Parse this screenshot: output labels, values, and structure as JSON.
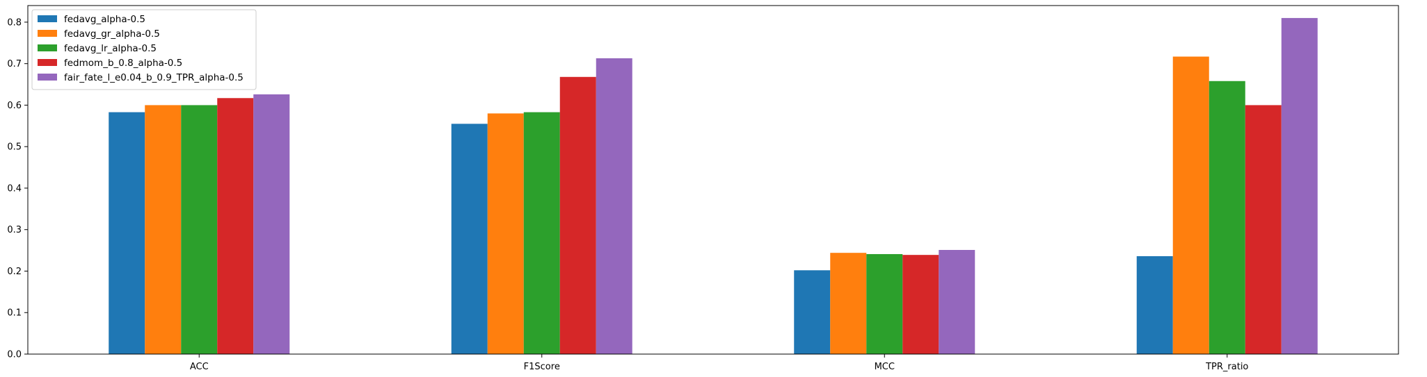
{
  "chart_data": {
    "type": "bar",
    "categories": [
      "ACC",
      "F1Score",
      "MCC",
      "TPR_ratio"
    ],
    "series": [
      {
        "name": "fedavg_alpha-0.5",
        "color": "#1f77b4",
        "values": [
          0.583,
          0.555,
          0.202,
          0.236
        ]
      },
      {
        "name": "fedavg_gr_alpha-0.5",
        "color": "#ff7f0e",
        "values": [
          0.6,
          0.58,
          0.244,
          0.717
        ]
      },
      {
        "name": "fedavg_lr_alpha-0.5",
        "color": "#2ca02c",
        "values": [
          0.6,
          0.583,
          0.241,
          0.658
        ]
      },
      {
        "name": "fedmom_b_0.8_alpha-0.5",
        "color": "#d62728",
        "values": [
          0.617,
          0.668,
          0.239,
          0.6
        ]
      },
      {
        "name": "fair_fate_l_e0.04_b_0.9_TPR_alpha-0.5",
        "color": "#9467bd",
        "values": [
          0.626,
          0.713,
          0.251,
          0.81
        ]
      }
    ],
    "yticks": [
      "0.0",
      "0.1",
      "0.2",
      "0.3",
      "0.4",
      "0.5",
      "0.6",
      "0.7",
      "0.8"
    ],
    "ylim": [
      0,
      0.84
    ],
    "title": "",
    "xlabel": "",
    "ylabel": "",
    "legend_position": "upper-left",
    "grid": false
  }
}
